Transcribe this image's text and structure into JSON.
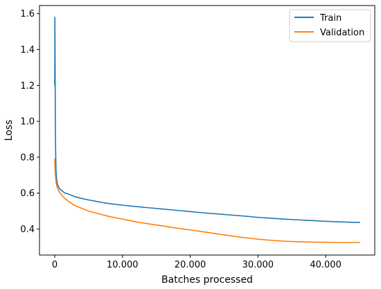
{
  "chart_data": {
    "type": "line",
    "title": "",
    "xlabel": "Batches processed",
    "ylabel": "Loss",
    "xlim": [
      -2250,
      47250
    ],
    "ylim": [
      0.255,
      1.645
    ],
    "xticks": [
      {
        "value": 0,
        "label": "0"
      },
      {
        "value": 10000,
        "label": "10.000"
      },
      {
        "value": 20000,
        "label": "20.000"
      },
      {
        "value": 30000,
        "label": "30.000"
      },
      {
        "value": 40000,
        "label": "40.000"
      }
    ],
    "yticks": [
      {
        "value": 0.4,
        "label": "0.4"
      },
      {
        "value": 0.6,
        "label": "0.6"
      },
      {
        "value": 0.8,
        "label": "0.8"
      },
      {
        "value": 1.0,
        "label": "1.0"
      },
      {
        "value": 1.2,
        "label": "1.2"
      },
      {
        "value": 1.4,
        "label": "1.4"
      },
      {
        "value": 1.6,
        "label": "1.6"
      }
    ],
    "grid": false,
    "legend_position": "top-right",
    "series": [
      {
        "name": "Train",
        "color": "#1f77b4",
        "x": [
          0,
          20,
          40,
          60,
          80,
          100,
          150,
          200,
          300,
          400,
          500,
          700,
          1000,
          1500,
          2000,
          3000,
          4000,
          5000,
          6000,
          7000,
          8000,
          10000,
          12000,
          14000,
          16000,
          18000,
          20000,
          22000,
          24000,
          26000,
          28000,
          30000,
          32000,
          34000,
          36000,
          38000,
          40000,
          42000,
          44000,
          45000
        ],
        "y": [
          1.2,
          1.58,
          1.45,
          1.27,
          1.1,
          0.94,
          0.8,
          0.72,
          0.67,
          0.65,
          0.64,
          0.625,
          0.615,
          0.6,
          0.595,
          0.58,
          0.57,
          0.562,
          0.555,
          0.548,
          0.542,
          0.533,
          0.525,
          0.518,
          0.511,
          0.504,
          0.497,
          0.49,
          0.484,
          0.478,
          0.472,
          0.465,
          0.46,
          0.455,
          0.451,
          0.447,
          0.443,
          0.44,
          0.437,
          0.437
        ]
      },
      {
        "name": "Validation",
        "color": "#ff7f0e",
        "x": [
          0,
          50,
          100,
          200,
          300,
          500,
          700,
          1000,
          1500,
          2000,
          3000,
          4000,
          5000,
          6000,
          7000,
          8000,
          10000,
          12000,
          14000,
          16000,
          18000,
          20000,
          22000,
          24000,
          26000,
          28000,
          30000,
          32000,
          34000,
          36000,
          38000,
          40000,
          42000,
          44000,
          45000
        ],
        "y": [
          0.79,
          0.74,
          0.7,
          0.66,
          0.64,
          0.62,
          0.605,
          0.59,
          0.57,
          0.555,
          0.53,
          0.515,
          0.5,
          0.49,
          0.48,
          0.47,
          0.455,
          0.44,
          0.428,
          0.417,
          0.405,
          0.395,
          0.384,
          0.373,
          0.362,
          0.352,
          0.343,
          0.337,
          0.332,
          0.329,
          0.327,
          0.326,
          0.325,
          0.325,
          0.325
        ]
      }
    ]
  }
}
